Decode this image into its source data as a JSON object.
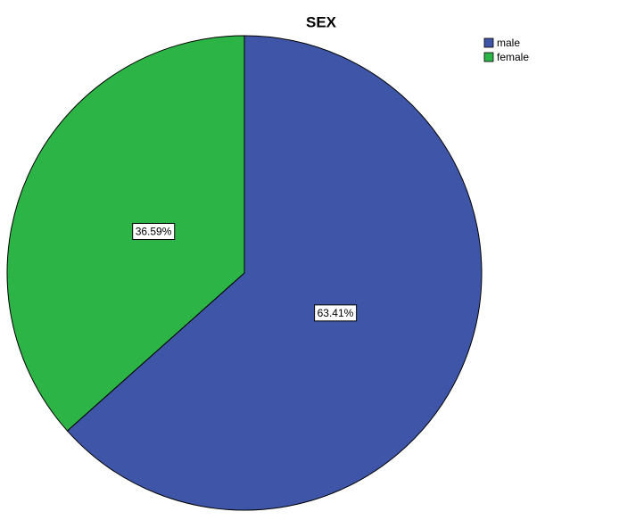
{
  "chart_data": {
    "type": "pie",
    "title": "SEX",
    "categories": [
      "male",
      "female"
    ],
    "values": [
      63.41,
      36.59
    ],
    "value_labels": [
      "63.41%",
      "36.59%"
    ],
    "colors": [
      "#3f56a8",
      "#2db446"
    ],
    "legend": "top-right"
  }
}
